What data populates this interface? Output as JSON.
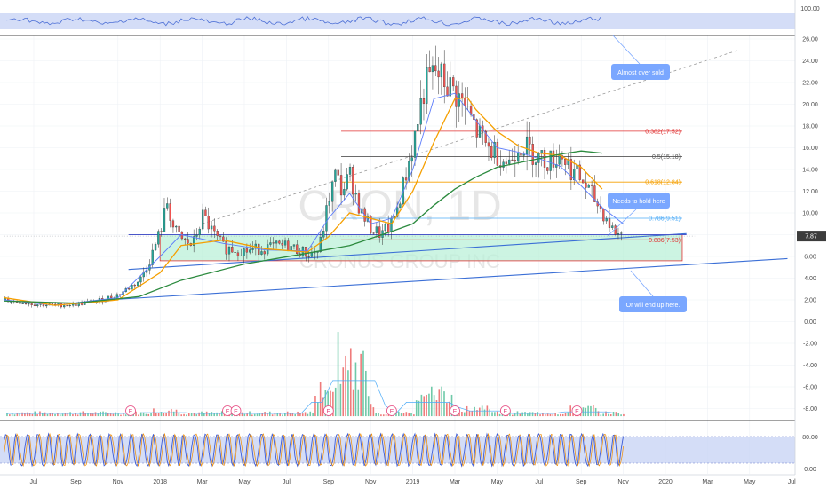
{
  "chart_data": {
    "type": "candlestick",
    "symbol": "CRON",
    "interval": "1D",
    "watermark_symbol": "CRON, 1D",
    "watermark_name": "CRONUS GROUP INC",
    "last_price_label": "7.87",
    "last_price": 7.87,
    "main_ylim": [
      -9.3,
      26.5
    ],
    "y_ticks": [
      {
        "v": 26.0,
        "label": "26.00"
      },
      {
        "v": 24.0,
        "label": "24.00"
      },
      {
        "v": 22.0,
        "label": "22.00"
      },
      {
        "v": 20.0,
        "label": "20.00"
      },
      {
        "v": 18.0,
        "label": "18.00"
      },
      {
        "v": 16.0,
        "label": "16.00"
      },
      {
        "v": 14.0,
        "label": "14.00"
      },
      {
        "v": 12.0,
        "label": "12.00"
      },
      {
        "v": 10.0,
        "label": "10.00"
      },
      {
        "v": 8.0,
        "label": "8.00"
      },
      {
        "v": 6.0,
        "label": "6.00"
      },
      {
        "v": 4.0,
        "label": "4.00"
      },
      {
        "v": 2.0,
        "label": "2.00"
      },
      {
        "v": 0.0,
        "label": "0.00"
      },
      {
        "v": -2.0,
        "label": "-2.00"
      },
      {
        "v": -4.0,
        "label": "-4.00"
      },
      {
        "v": -6.0,
        "label": "-6.00"
      },
      {
        "v": -8.0,
        "label": "-8.00"
      }
    ],
    "x_ticks": [
      {
        "t": 0,
        "label": "Jul"
      },
      {
        "t": 2,
        "label": "Sep"
      },
      {
        "t": 4,
        "label": "Nov"
      },
      {
        "t": 6,
        "label": "2018"
      },
      {
        "t": 8,
        "label": "Mar"
      },
      {
        "t": 10,
        "label": "May"
      },
      {
        "t": 12,
        "label": "Jul"
      },
      {
        "t": 14,
        "label": "Sep"
      },
      {
        "t": 16,
        "label": "Nov"
      },
      {
        "t": 18,
        "label": "2019"
      },
      {
        "t": 20,
        "label": "Mar"
      },
      {
        "t": 22,
        "label": "May"
      },
      {
        "t": 24,
        "label": "Jul"
      },
      {
        "t": 26,
        "label": "Sep"
      },
      {
        "t": 28,
        "label": "Nov"
      },
      {
        "t": 30,
        "label": "2020"
      },
      {
        "t": 32,
        "label": "Mar"
      },
      {
        "t": 34,
        "label": "May"
      },
      {
        "t": 36,
        "label": "Jul"
      }
    ],
    "price_path": [
      [
        -1.4,
        2.0
      ],
      [
        0,
        1.6
      ],
      [
        1,
        1.5
      ],
      [
        2,
        1.6
      ],
      [
        3,
        1.9
      ],
      [
        4,
        2.5
      ],
      [
        5,
        3.8
      ],
      [
        5.5,
        5.8
      ],
      [
        6,
        8.5
      ],
      [
        6.3,
        11.0
      ],
      [
        6.6,
        8.5
      ],
      [
        7,
        7.5
      ],
      [
        7.5,
        7.0
      ],
      [
        8,
        9.8
      ],
      [
        8.5,
        8.0
      ],
      [
        9,
        6.8
      ],
      [
        10,
        6.5
      ],
      [
        11,
        6.8
      ],
      [
        12,
        7.0
      ],
      [
        13,
        6.2
      ],
      [
        13.5,
        6.5
      ],
      [
        14,
        11.5
      ],
      [
        14.3,
        13.5
      ],
      [
        14.6,
        12.0
      ],
      [
        15,
        13.5
      ],
      [
        15.5,
        10.0
      ],
      [
        16,
        8.5
      ],
      [
        16.5,
        8.0
      ],
      [
        17,
        9.0
      ],
      [
        17.5,
        12.5
      ],
      [
        18,
        16.5
      ],
      [
        18.5,
        21.5
      ],
      [
        19,
        23.0
      ],
      [
        19.5,
        22.0
      ],
      [
        20,
        21.0
      ],
      [
        20.5,
        19.5
      ],
      [
        21,
        17.5
      ],
      [
        21.5,
        16.0
      ],
      [
        22,
        15.5
      ],
      [
        22.5,
        14.5
      ],
      [
        23,
        16.5
      ],
      [
        23.5,
        15.8
      ],
      [
        24,
        15.0
      ],
      [
        24.5,
        14.8
      ],
      [
        25,
        15.5
      ],
      [
        25.5,
        14.0
      ],
      [
        26,
        13.0
      ],
      [
        26.5,
        11.5
      ],
      [
        27,
        10.0
      ],
      [
        27.5,
        8.3
      ],
      [
        28,
        7.87
      ]
    ],
    "volume_bars": [
      {
        "t": 6.2,
        "h": 0.8
      },
      {
        "t": 14.0,
        "h": 3.2
      },
      {
        "t": 14.5,
        "h": 2.8
      },
      {
        "t": 14.9,
        "h": 3.8
      },
      {
        "t": 15.1,
        "h": 8.2
      },
      {
        "t": 15.5,
        "h": 2.4
      },
      {
        "t": 18.8,
        "h": 3.2
      },
      {
        "t": 19.3,
        "h": 2.0
      },
      {
        "t": 21.0,
        "h": 1.2
      },
      {
        "t": 26.0,
        "h": 1.0
      }
    ],
    "fib_levels": [
      {
        "ratio": "0.382",
        "price": 17.52,
        "label": "0.382(17.52)",
        "color": "#e03131"
      },
      {
        "ratio": "0.5",
        "price": 15.18,
        "label": "0.5(15.18)",
        "color": "#555555"
      },
      {
        "ratio": "0.618",
        "price": 12.84,
        "label": "0.618(12.84)",
        "color": "#f59f00"
      },
      {
        "ratio": "0.786",
        "price": 9.51,
        "label": "0.786(9.51)",
        "color": "#4dabf7"
      },
      {
        "ratio": "0.886",
        "price": 7.53,
        "label": "0.886(7.53)",
        "color": "#e03131"
      }
    ],
    "fib_range_t": [
      14.6,
      30.8
    ],
    "support_zone": {
      "t_start": 6.0,
      "t_end": 30.8,
      "p_top": 8.0,
      "p_bottom": 5.6
    },
    "trendlines": [
      {
        "name": "rising-support",
        "from": [
          3.5,
          2.0
        ],
        "to": [
          35.8,
          5.8
        ],
        "color": "#3b6fd6"
      },
      {
        "name": "upper-support",
        "from": [
          4.5,
          4.8
        ],
        "to": [
          31.0,
          8.1
        ],
        "color": "#3b6fd6"
      },
      {
        "name": "dashed-trend",
        "from": [
          8,
          9.0
        ],
        "to": [
          33.5,
          25.0
        ],
        "color": "#9a9a9a"
      }
    ],
    "sma_200_path": [
      [
        -1.4,
        1.9
      ],
      [
        2,
        1.7
      ],
      [
        5,
        2.3
      ],
      [
        7,
        3.8
      ],
      [
        10,
        5.3
      ],
      [
        13,
        6.3
      ],
      [
        15,
        7.0
      ],
      [
        17,
        8.3
      ],
      [
        18,
        9.0
      ],
      [
        19,
        10.7
      ],
      [
        20,
        12.2
      ],
      [
        21,
        13.3
      ],
      [
        22,
        14.2
      ],
      [
        23,
        14.6
      ],
      [
        24,
        15.0
      ],
      [
        25,
        15.4
      ],
      [
        26,
        15.7
      ],
      [
        27,
        15.5
      ]
    ],
    "ema_50_path": [
      [
        -1.4,
        2.2
      ],
      [
        1,
        1.5
      ],
      [
        4,
        2.0
      ],
      [
        6,
        4.5
      ],
      [
        7,
        7.0
      ],
      [
        9,
        7.5
      ],
      [
        11,
        6.7
      ],
      [
        13,
        6.4
      ],
      [
        14,
        7.8
      ],
      [
        15,
        10.0
      ],
      [
        16,
        9.5
      ],
      [
        17,
        9.0
      ],
      [
        18,
        12.0
      ],
      [
        19,
        16.5
      ],
      [
        20,
        20.5
      ],
      [
        20.6,
        20.6
      ],
      [
        21,
        19.5
      ],
      [
        22,
        17.5
      ],
      [
        23,
        16.2
      ],
      [
        24,
        15.5
      ],
      [
        25,
        15.3
      ],
      [
        26,
        14.2
      ],
      [
        27,
        12.2
      ]
    ],
    "ema_20_path": [
      [
        -1.4,
        2.0
      ],
      [
        1,
        1.5
      ],
      [
        4,
        2.2
      ],
      [
        6,
        6.0
      ],
      [
        7,
        8.0
      ],
      [
        9,
        7.2
      ],
      [
        11,
        6.6
      ],
      [
        13,
        6.5
      ],
      [
        14,
        9.5
      ],
      [
        15,
        11.8
      ],
      [
        16,
        9.0
      ],
      [
        17,
        9.5
      ],
      [
        18,
        14.0
      ],
      [
        19,
        20.5
      ],
      [
        20,
        21.0
      ],
      [
        21,
        18.5
      ],
      [
        22,
        16.0
      ],
      [
        23,
        15.6
      ],
      [
        24,
        15.0
      ],
      [
        25,
        14.3
      ],
      [
        26,
        12.5
      ],
      [
        27,
        10.5
      ],
      [
        28,
        9.0
      ]
    ],
    "earnings_t": [
      4.6,
      9.2,
      9.6,
      14.0,
      17.0,
      20.0,
      22.4,
      25.8
    ],
    "earnings_label": "E",
    "lower_indicator_ticks": [
      {
        "v": 80,
        "label": "80.00"
      },
      {
        "v": 0,
        "label": "0.00"
      }
    ],
    "top_indicator_ticks": [
      {
        "v": 100,
        "label": "100.00"
      }
    ]
  },
  "annotations": [
    {
      "name": "note-oversold",
      "text": "Almost over sold"
    },
    {
      "name": "note-hold",
      "text": "Needs to hold here"
    },
    {
      "name": "note-end",
      "text": "Or will end up here."
    }
  ]
}
